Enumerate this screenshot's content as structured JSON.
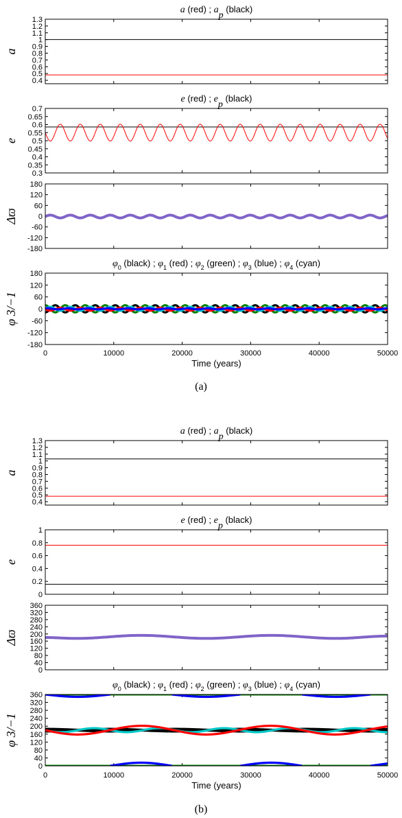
{
  "figures": [
    {
      "caption": "(a)",
      "xlabel": "Time (years)",
      "xticks": [
        "0",
        "10000",
        "20000",
        "30000",
        "40000",
        "50000"
      ]
    },
    {
      "caption": "(b)",
      "xlabel": "Time (years)",
      "xticks": [
        "0",
        "10000",
        "20000",
        "30000",
        "40000",
        "50000"
      ]
    }
  ],
  "chart_data": [
    {
      "figure": "(a)",
      "type": "line",
      "panel": "a",
      "title": "a (red) ; a_p (black)",
      "ylabel": "a",
      "xlim": [
        0,
        50000
      ],
      "ylim": [
        0.35,
        1.3
      ],
      "yticks": [
        "0.4",
        "0.5",
        "0.6",
        "0.7",
        "0.8",
        "0.9",
        "1",
        "1.1",
        "1.2",
        "1.3"
      ],
      "series": [
        {
          "color": "#000000",
          "x": [
            0,
            50000
          ],
          "y": [
            1.0,
            1.0
          ]
        },
        {
          "color": "#ff0000",
          "x": [
            0,
            50000
          ],
          "y": [
            0.48,
            0.48
          ]
        }
      ]
    },
    {
      "figure": "(a)",
      "type": "line",
      "panel": "e",
      "title": "e (red) ; e_p (black)",
      "ylabel": "e",
      "xlim": [
        0,
        50000
      ],
      "ylim": [
        0.3,
        0.7
      ],
      "yticks": [
        "0.3",
        "0.35",
        "0.4",
        "0.45",
        "0.5",
        "0.55",
        "0.6",
        "0.65",
        "0.7"
      ],
      "series": [
        {
          "color": "#000000",
          "x": [
            0,
            50000
          ],
          "y": [
            0.585,
            0.585
          ]
        },
        {
          "color": "#ff0000",
          "oscillation": {
            "mean": 0.55,
            "amplitude": 0.052,
            "period": 2920,
            "phase_deg": 180
          }
        }
      ]
    },
    {
      "figure": "(a)",
      "type": "line",
      "panel": "varpi",
      "title": "",
      "ylabel": "Δϖ",
      "xlim": [
        0,
        50000
      ],
      "ylim": [
        -180,
        180
      ],
      "yticks": [
        "-180",
        "-120",
        "-60",
        "0",
        "60",
        "120",
        "180"
      ],
      "series": [
        {
          "color": "#8064c8",
          "oscillation": {
            "mean": -2,
            "amplitude": 8,
            "period": 2920,
            "phase_deg": 0
          }
        }
      ]
    },
    {
      "figure": "(a)",
      "type": "line",
      "panel": "phi",
      "title": "φ0 (black) ; φ1 (red) ; φ2 (green) ; φ3 (blue) ; φ4 (cyan)",
      "ylabel": "φ 3/−1",
      "xlim": [
        0,
        50000
      ],
      "ylim": [
        -180,
        180
      ],
      "yticks": [
        "-180",
        "-120",
        "-60",
        "0",
        "60",
        "120",
        "180"
      ],
      "series": [
        {
          "color": "#008000",
          "oscillation": {
            "mean": 0,
            "amplitude": 18,
            "period": 2920,
            "phase_deg": 90
          }
        },
        {
          "color": "#000000",
          "oscillation": {
            "mean": 0,
            "amplitude": 18,
            "period": 2920,
            "phase_deg": 270
          }
        },
        {
          "color": "#00c8c8",
          "oscillation": {
            "mean": 0,
            "amplitude": 10,
            "period": 2920,
            "phase_deg": 0
          }
        },
        {
          "color": "#ff0000",
          "oscillation": {
            "mean": -2,
            "amplitude": 7,
            "period": 2920,
            "phase_deg": 180
          }
        },
        {
          "color": "#0000ff",
          "oscillation": {
            "mean": 0,
            "amplitude": 3,
            "period": 2920,
            "phase_deg": 45
          }
        }
      ]
    },
    {
      "figure": "(b)",
      "type": "line",
      "panel": "a",
      "title": "a (red) ; a_p (black)",
      "ylabel": "a",
      "xlim": [
        0,
        50000
      ],
      "ylim": [
        0.35,
        1.3
      ],
      "yticks": [
        "0.4",
        "0.5",
        "0.6",
        "0.7",
        "0.8",
        "0.9",
        "1",
        "1.1",
        "1.2",
        "1.3"
      ],
      "series": [
        {
          "color": "#000000",
          "x": [
            0,
            50000
          ],
          "y": [
            1.03,
            1.03
          ]
        },
        {
          "color": "#ff0000",
          "x": [
            0,
            50000
          ],
          "y": [
            0.48,
            0.48
          ]
        }
      ]
    },
    {
      "figure": "(b)",
      "type": "line",
      "panel": "e",
      "title": "e (red) ; e_p (black)",
      "ylabel": "e",
      "xlim": [
        0,
        50000
      ],
      "ylim": [
        0,
        1
      ],
      "yticks": [
        "0",
        "0.2",
        "0.4",
        "0.6",
        "0.8",
        "1"
      ],
      "series": [
        {
          "color": "#ff0000",
          "x": [
            0,
            50000
          ],
          "y": [
            0.76,
            0.76
          ]
        },
        {
          "color": "#000000",
          "x": [
            0,
            50000
          ],
          "y": [
            0.155,
            0.155
          ]
        }
      ]
    },
    {
      "figure": "(b)",
      "type": "line",
      "panel": "varpi",
      "title": "",
      "ylabel": "Δϖ",
      "xlim": [
        0,
        50000
      ],
      "ylim": [
        0,
        360
      ],
      "yticks": [
        "0",
        "40",
        "80",
        "120",
        "160",
        "200",
        "240",
        "280",
        "320",
        "360"
      ],
      "series": [
        {
          "color": "#8064c8",
          "x": [
            0,
            4500,
            14000,
            23500,
            33000,
            42500,
            50000
          ],
          "y": [
            180,
            175,
            192,
            175,
            192,
            175,
            188
          ]
        }
      ]
    },
    {
      "figure": "(b)",
      "type": "line",
      "panel": "phi",
      "title": "φ0 (black) ; φ1 (red) ; φ2 (green) ; φ3 (blue) ; φ4 (cyan)",
      "ylabel": "φ 3/−1",
      "xlim": [
        0,
        50000
      ],
      "ylim": [
        0,
        360
      ],
      "yticks": [
        "0",
        "40",
        "80",
        "120",
        "160",
        "200",
        "240",
        "280",
        "320",
        "360"
      ],
      "series": [
        {
          "color": "#008000",
          "x": [
            0,
            50000
          ],
          "y": [
            360,
            360
          ]
        },
        {
          "color": "#008000",
          "x": [
            0,
            50000
          ],
          "y": [
            0,
            0
          ]
        },
        {
          "color": "#0000ff",
          "x": [
            0,
            4500,
            9500
          ],
          "y": [
            360,
            348,
            360
          ]
        },
        {
          "color": "#0000ff",
          "x": [
            18500,
            23500,
            28500
          ],
          "y": [
            360,
            348,
            360
          ]
        },
        {
          "color": "#0000ff",
          "x": [
            37500,
            42500,
            47500
          ],
          "y": [
            360,
            348,
            360
          ]
        },
        {
          "color": "#0000ff",
          "x": [
            9500,
            14000,
            18500
          ],
          "y": [
            0,
            16,
            0
          ]
        },
        {
          "color": "#0000ff",
          "x": [
            28500,
            33000,
            37500
          ],
          "y": [
            0,
            16,
            0
          ]
        },
        {
          "color": "#0000ff",
          "x": [
            47500,
            50000
          ],
          "y": [
            0,
            12
          ]
        },
        {
          "color": "#000000",
          "band": {
            "center": 180,
            "half": 12,
            "period": 9500
          }
        },
        {
          "color": "#00c8c8",
          "oscillation": {
            "mean": 180,
            "amplitude": 10,
            "period": 9500,
            "phase_deg": 180
          }
        },
        {
          "color": "#ff0000",
          "oscillation": {
            "mean": 180,
            "amplitude": 22,
            "period": 18800,
            "phase_deg": 180
          }
        }
      ]
    }
  ]
}
